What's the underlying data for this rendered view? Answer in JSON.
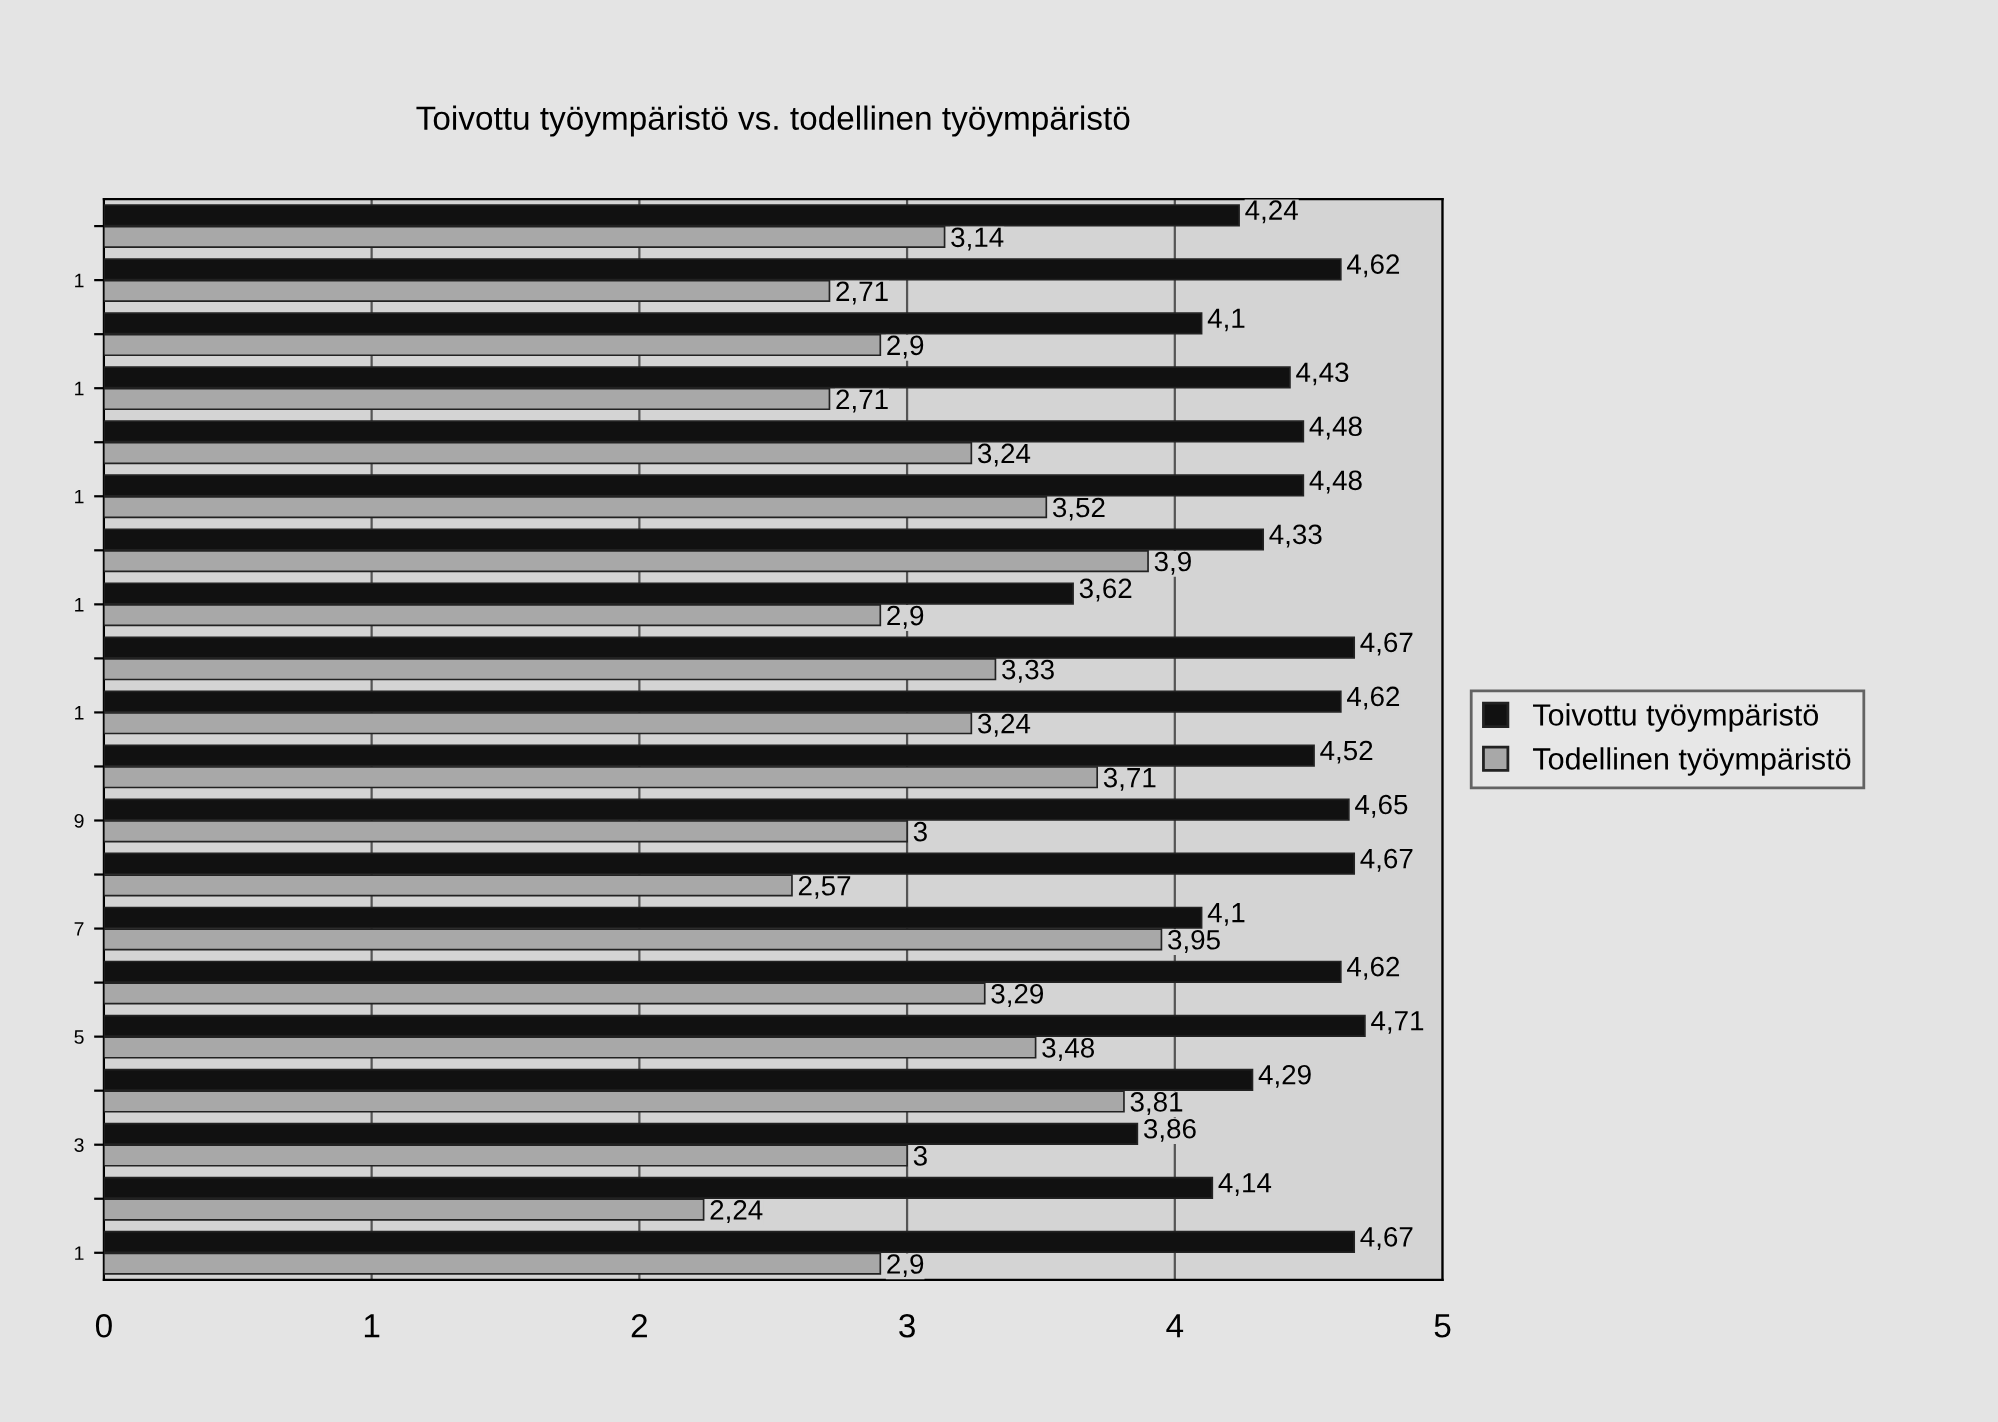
{
  "chart_data": {
    "type": "bar",
    "orientation": "horizontal",
    "title": "Toivottu työympäristö vs. todellinen työympäristö",
    "categories": [
      null,
      "1",
      null,
      "1",
      null,
      "1",
      null,
      "1",
      null,
      "1",
      null,
      "9",
      null,
      "7",
      null,
      "5",
      null,
      "3",
      null,
      "1"
    ],
    "series": [
      {
        "name": "Toivottu työympäristö",
        "color": "#111111",
        "values": [
          4.24,
          4.62,
          4.1,
          4.43,
          4.48,
          4.48,
          4.33,
          3.62,
          4.67,
          4.62,
          4.52,
          4.65,
          4.67,
          4.1,
          4.62,
          4.71,
          4.29,
          3.86,
          4.14,
          4.67
        ],
        "value_labels": [
          "4,24",
          "4,62",
          "4,1",
          "4,43",
          "4,48",
          "4,48",
          "4,33",
          "3,62",
          "4,67",
          "4,62",
          "4,52",
          "4,65",
          "4,67",
          "4,1",
          "4,62",
          "4,71",
          "4,29",
          "3,86",
          "4,14",
          "4,67"
        ]
      },
      {
        "name": "Todellinen työympäristö",
        "color": "#a8a8a8",
        "values": [
          3.14,
          2.71,
          2.9,
          2.71,
          3.24,
          3.52,
          3.9,
          2.9,
          3.33,
          3.24,
          3.71,
          3,
          2.57,
          3.95,
          3.29,
          3.48,
          3.81,
          3,
          2.24,
          2.9
        ],
        "value_labels": [
          "3,14",
          "2,71",
          "2,9",
          "2,71",
          "3,24",
          "3,52",
          "3,9",
          "2,9",
          "3,33",
          "3,24",
          "3,71",
          "3",
          "2,57",
          "3,95",
          "3,29",
          "3,48",
          "3,81",
          "3",
          "2,24",
          "2,9"
        ]
      }
    ],
    "xlim": [
      0,
      5
    ],
    "xticks": [
      0,
      1,
      2,
      3,
      4,
      5
    ],
    "grid": "x",
    "legend": "right"
  }
}
